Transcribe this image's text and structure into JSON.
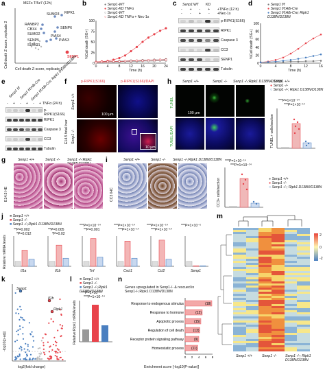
{
  "panels": {
    "a": {
      "label": "a",
      "title": "MEFs T/5z7 (12h)",
      "ylabel": "Cell death Z-score, replicate 2",
      "xlabel": "Cell death Z-score, replicate 1",
      "genes": [
        "SUMO3",
        "RIPK1",
        "RANBP2",
        "CBX4",
        "SUMO2",
        "SENP6",
        "SENP5",
        "PIAS3",
        "SUMO1",
        "PIAS4",
        "SENP1"
      ]
    },
    "b": {
      "label": "b",
      "legend": [
        "Senp1-WT",
        "Senp1-KD",
        "Senp1-WT",
        "Senp1-KD"
      ],
      "treatments": [
        "TNFα",
        "TNFα + Nec-1s"
      ],
      "ylabel": "%Cell death (SG+)",
      "xlabel": "Time (h)",
      "xticks": [
        "0",
        "4",
        "8",
        "12",
        "16",
        "20",
        "24"
      ],
      "yticks": [
        "0",
        "25",
        "50",
        "75",
        "100"
      ]
    },
    "c": {
      "label": "c",
      "header": "Senp1",
      "groups": [
        "WT",
        "KD"
      ],
      "rows_treat": [
        "TNFα (12 h)",
        "Nec-1s"
      ],
      "signs_tnf": [
        "-",
        "+",
        "-",
        "+",
        "+"
      ],
      "signs_nec": [
        "-",
        "-",
        "+",
        "-",
        "+"
      ],
      "bands": [
        "p-RIPK1(S166)",
        "RIPK1",
        "Caspase 3",
        "CC3",
        "SENP1",
        "Tubulin"
      ]
    },
    "d": {
      "label": "d",
      "legend": [
        "Senp1 f/f",
        "Senp1 f/f;Alb-Cre",
        "Senp1 f/f;Alb-Cre; Ripk1 D138N/D138N"
      ],
      "ylabel": "%Cell death (SG+)",
      "xlabel": "Time (h)",
      "xticks": [
        "0",
        "4",
        "8",
        "12",
        "16"
      ],
      "yticks": [
        "0",
        "20",
        "40",
        "60",
        "80",
        "100"
      ]
    },
    "e": {
      "label": "e",
      "cols": [
        "Senp1 f/f",
        "Senp1 f/f;Alb-Cre",
        "Senp1 f/f;Alb-Cre; Ripk1 D138N/D138N"
      ],
      "treat": "TNFα (24 h)",
      "signs": [
        "-",
        "+",
        "-",
        "+",
        "-",
        "+"
      ],
      "bands": [
        "p-RIPK1(S166)",
        "RIPK1",
        "Caspase 3",
        "CC3",
        "Tubulin"
      ]
    },
    "f": {
      "label": "f",
      "headers": [
        "p-RIPK1(S166)",
        "p-RIPK1(S166)/DAPI"
      ],
      "rows": [
        "Senp1 +/+",
        "Senp1 -/-"
      ],
      "side": "E14.5 fetal liver",
      "scale1": "100 μm",
      "scale2": "10 μm"
    },
    "h": {
      "label": "h",
      "headers": [
        "Senp1 +/+",
        "Senp1 -/-",
        "Senp1 -/-;Ripk1 D138N/D138N"
      ],
      "rows": [
        "TUNEL",
        "TUNEL/DAPI"
      ],
      "scale": "100 μm",
      "legend": [
        "Senp1 +/+",
        "Senp1 -/-",
        "Senp1 -/-; Ripk1 D138N/D138N"
      ],
      "stats": [
        "***P=1×10⁻¹⁴",
        "***P=1×10⁻¹⁴"
      ],
      "ylabel": "TUNEL+ cells/section"
    },
    "g": {
      "label": "g",
      "headers": [
        "Senp1 +/+",
        "Senp1 -/-",
        "Senp1 -/-;Ripk1 D138N/D138N"
      ],
      "side": "E14.5 HE"
    },
    "i": {
      "label": "i",
      "headers": [
        "Senp1 +/+",
        "Senp1 -/-",
        "Senp1 -/-;Ripk1 D138N/D138N"
      ],
      "side": "CC3 IHC",
      "stats": [
        "***P=1×10⁻¹⁴",
        "***P=1×10⁻¹⁴"
      ],
      "ylabel": "CC3+ cells/section",
      "legend": [
        "Senp1 +/+",
        "Senp1 -/-",
        "Senp1 -/-; Ripk1 D138N/D138N"
      ]
    },
    "j": {
      "label": "j",
      "legend": [
        "Senp1 +/+",
        "Senp1 -/-",
        "Senp1 -/-;Ripk1 D138N/D138N"
      ],
      "ylabel": "Relative mRNA levels",
      "genes": [
        "Il1a",
        "Il1b",
        "Tnf",
        "Cxcl1",
        "Ccl2",
        "Senp1"
      ],
      "stats": [
        [
          "**P=0.002",
          "*P=0.012"
        ],
        [
          "**P=0.005",
          "*P=0.02"
        ],
        [
          "***P=1×10⁻¹⁴",
          "**P=0.001"
        ],
        [
          "***P=1×10⁻¹⁴",
          "***P=1×10⁻¹⁴"
        ],
        [
          "***P=1×10⁻¹⁴",
          "***P=1×10⁻¹⁴"
        ],
        [
          "***P=1×10⁻⁶"
        ]
      ]
    },
    "k": {
      "label": "k",
      "ylabel": "-log10(p-adj)",
      "xlabel": "log2(fold change)",
      "genes": [
        "Senp1",
        "Il1b",
        "Ripk1"
      ]
    },
    "l": {
      "label": "l",
      "legend": [
        "Senp1 +/+",
        "Senp1 -/-",
        "Senp1 -/-;Ripk1 D138N/D138N"
      ],
      "ylabel": "Relative Ripk1 mRNA levels",
      "stats": [
        "***P=1×10⁻¹⁴",
        "***P=1×10⁻¹⁴"
      ]
    },
    "m": {
      "label": "m",
      "cols": [
        "Senp1 +/+",
        "Senp1 -/-",
        "Senp1 -/-; Ripk1 D138N/D138N"
      ],
      "scale": [
        "2",
        "0",
        "-2"
      ]
    },
    "n": {
      "label": "n",
      "title": "Genes upregulated in Senp1-/- & rescued in Senp1-/-;Ripk1 D138N/D138N",
      "xlabel": "Enrichment score [-log10(P-value)]",
      "xticks": [
        "0",
        "2",
        "4",
        "6",
        "8"
      ]
    }
  },
  "chart_data": [
    {
      "type": "bar",
      "title": "Genes upregulated in Senp1-/- & rescued in Senp1-/-;Ripk1 D138N/D138N",
      "categories": [
        "Response to endogenous stimulus",
        "Response to hormone",
        "Apoptotic process",
        "Regulation of cell death",
        "Receptor protein signaling pathway",
        "Homeostatic process"
      ],
      "values": [
        7.8,
        5.0,
        4.6,
        4.3,
        4.0,
        3.7
      ],
      "counts": [
        "(18)",
        "(12)",
        "(15)",
        "(13)",
        "(9)",
        "(11)"
      ],
      "xlabel": "Enrichment score [-log10(P-value)]",
      "xlim": [
        0,
        8
      ]
    },
    {
      "type": "line",
      "title": "",
      "xlabel": "Time (h)",
      "ylabel": "%Cell death (SG+)",
      "x": [
        0,
        2,
        4,
        6,
        8,
        10,
        12,
        14,
        16,
        18,
        20,
        22,
        24
      ],
      "series": [
        {
          "name": "Senp1-WT TNFα",
          "values": [
            3,
            3,
            4,
            4,
            5,
            5,
            6,
            6,
            7,
            7,
            8,
            8,
            9
          ]
        },
        {
          "name": "Senp1-KD TNFα",
          "values": [
            3,
            4,
            5,
            8,
            12,
            18,
            28,
            38,
            50,
            60,
            68,
            76,
            82
          ]
        },
        {
          "name": "Senp1-WT TNFα + Nec-1s",
          "values": [
            2,
            2,
            3,
            3,
            3,
            4,
            4,
            4,
            5,
            5,
            5,
            6,
            6
          ]
        },
        {
          "name": "Senp1-KD TNFα + Nec-1s",
          "values": [
            2,
            3,
            3,
            4,
            4,
            5,
            5,
            6,
            6,
            7,
            7,
            8,
            8
          ]
        }
      ],
      "ylim": [
        0,
        100
      ]
    }
  ]
}
